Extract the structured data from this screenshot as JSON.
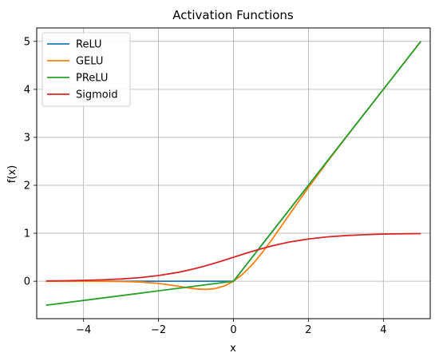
{
  "chart_data": {
    "type": "line",
    "title": "Activation Functions",
    "xlabel": "x",
    "ylabel": "f(x)",
    "xlim": [
      -5.25,
      5.25
    ],
    "ylim": [
      -0.78,
      5.28
    ],
    "grid": true,
    "legend_position": "top-left",
    "x_ticks": [
      -4,
      -2,
      0,
      2,
      4
    ],
    "x_tick_labels": [
      "−4",
      "−2",
      "0",
      "2",
      "4"
    ],
    "y_ticks": [
      0,
      1,
      2,
      3,
      4,
      5
    ],
    "y_tick_labels": [
      "0",
      "1",
      "2",
      "3",
      "4",
      "5"
    ],
    "x": [
      -5,
      -4.5,
      -4,
      -3.5,
      -3,
      -2.5,
      -2,
      -1.5,
      -1.25,
      -1,
      -0.75,
      -0.5,
      -0.25,
      0,
      0.25,
      0.5,
      0.75,
      1,
      1.25,
      1.5,
      2,
      2.5,
      3,
      3.5,
      4,
      4.5,
      5
    ],
    "series": [
      {
        "name": "ReLU",
        "color": "#1f77b4",
        "values": [
          0,
          0,
          0,
          0,
          0,
          0,
          0,
          0,
          0,
          0,
          0,
          0,
          0,
          0,
          0.25,
          0.5,
          0.75,
          1,
          1.25,
          1.5,
          2,
          2.5,
          3,
          3.5,
          4,
          4.5,
          5
        ]
      },
      {
        "name": "GELU",
        "color": "#ff7f0e",
        "values": [
          0,
          0,
          -0.0001,
          -0.0008,
          -0.004,
          -0.0155,
          -0.0455,
          -0.1002,
          -0.132,
          -0.1587,
          -0.17,
          -0.1543,
          -0.1003,
          0,
          0.1497,
          0.3457,
          0.58,
          0.8413,
          1.118,
          1.3998,
          1.9545,
          2.4845,
          2.996,
          3.4992,
          3.9999,
          4.5,
          5
        ]
      },
      {
        "name": "PReLU",
        "color": "#2ca02c",
        "values": [
          -0.5,
          -0.45,
          -0.4,
          -0.35,
          -0.3,
          -0.25,
          -0.2,
          -0.15,
          -0.125,
          -0.1,
          -0.075,
          -0.05,
          -0.025,
          0,
          0.25,
          0.5,
          0.75,
          1,
          1.25,
          1.5,
          2,
          2.5,
          3,
          3.5,
          4,
          4.5,
          5
        ]
      },
      {
        "name": "Sigmoid",
        "color": "#d62728",
        "values": [
          0.0067,
          0.011,
          0.018,
          0.0293,
          0.0474,
          0.0759,
          0.1192,
          0.1824,
          0.2227,
          0.2689,
          0.3208,
          0.3775,
          0.4378,
          0.5,
          0.5622,
          0.6225,
          0.6792,
          0.7311,
          0.7773,
          0.8176,
          0.8808,
          0.9241,
          0.9526,
          0.9707,
          0.982,
          0.989,
          0.9933
        ]
      }
    ]
  }
}
